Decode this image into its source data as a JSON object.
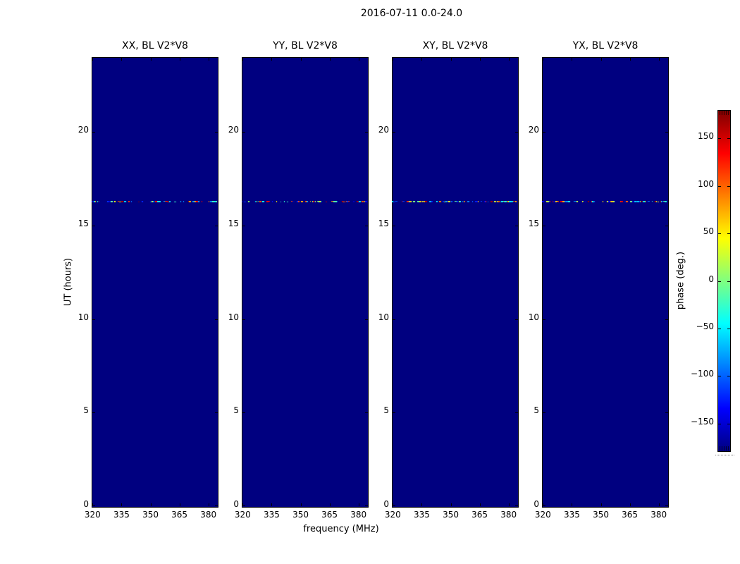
{
  "figure": {
    "title": "2016-07-11 0.0-24.0",
    "background_color": "#ffffff"
  },
  "axes": {
    "xlabel": "frequency (MHz)",
    "ylabel": "UT (hours)",
    "x_tick_labels": [
      "320",
      "335",
      "350",
      "365",
      "380"
    ],
    "y_tick_labels": [
      "0",
      "5",
      "10",
      "15",
      "20"
    ]
  },
  "panels": [
    {
      "title": "XX, BL V2*V8"
    },
    {
      "title": "YY, BL V2*V8"
    },
    {
      "title": "XY, BL V2*V8"
    },
    {
      "title": "YX, BL V2*V8"
    }
  ],
  "colorbar": {
    "label": "phase (deg.)",
    "tick_labels": [
      "150",
      "100",
      "50",
      "0",
      "−50",
      "−100",
      "−150"
    ],
    "colormap": "jet",
    "top_color": "#800000",
    "bottom_color": "#000080"
  },
  "colors": {
    "panel_background": "#000080",
    "axis": "#000000",
    "text": "#000000"
  },
  "chart_data": {
    "type": "heatmap",
    "title": "2016-07-11 0.0-24.0",
    "xlabel": "frequency (MHz)",
    "ylabel": "UT (hours)",
    "x_range_mhz": [
      319.5,
      384.5
    ],
    "x_ticks": [
      320,
      335,
      350,
      365,
      380
    ],
    "y_range_hours": [
      0,
      24
    ],
    "y_ticks": [
      0,
      5,
      10,
      15,
      20
    ],
    "colormap": "jet",
    "color_scale_label": "phase (deg.)",
    "color_range_deg": [
      -180,
      180
    ],
    "colorbar_ticks": [
      150,
      100,
      50,
      0,
      -50,
      -100,
      -150
    ],
    "panels": [
      {
        "label": "XX, BL V2*V8"
      },
      {
        "label": "YY, BL V2*V8"
      },
      {
        "label": "XY, BL V2*V8"
      },
      {
        "label": "YX, BL V2*V8"
      }
    ],
    "content_description": "Each panel is a uniform minimum-value (deep navy, ~-180 deg phase) waterfall over 0-24 UT hours and ~319.5-384.5 MHz, except one thin horizontal row of random-phase speckles.",
    "noise_row": {
      "ut_hours": 16.3,
      "extent": "all frequencies, present in all four panels",
      "phase_values": "random, spanning the full -180 to +180 deg range"
    }
  }
}
